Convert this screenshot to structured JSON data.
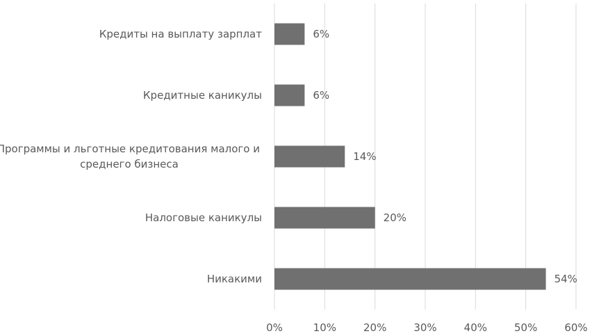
{
  "chart_data": {
    "type": "bar",
    "orientation": "horizontal",
    "categories": [
      [
        "Кредиты на выплату зарплат"
      ],
      [
        "Кредитные каникулы"
      ],
      [
        "Программы и льготные кредитования малого и",
        "среднего бизнеса"
      ],
      [
        "Налоговые каникулы"
      ],
      [
        "Никакими"
      ]
    ],
    "values": [
      6,
      6,
      14,
      20,
      54
    ],
    "value_labels": [
      "6%",
      "6%",
      "14%",
      "20%",
      "54%"
    ],
    "xlim": [
      0,
      60
    ],
    "x_ticks": [
      0,
      10,
      20,
      30,
      40,
      50,
      60
    ],
    "x_tick_labels": [
      "0%",
      "10%",
      "20%",
      "30%",
      "40%",
      "50%",
      "60%"
    ],
    "grid": true,
    "bar_color": "#707070",
    "title": "",
    "xlabel": "",
    "ylabel": ""
  }
}
